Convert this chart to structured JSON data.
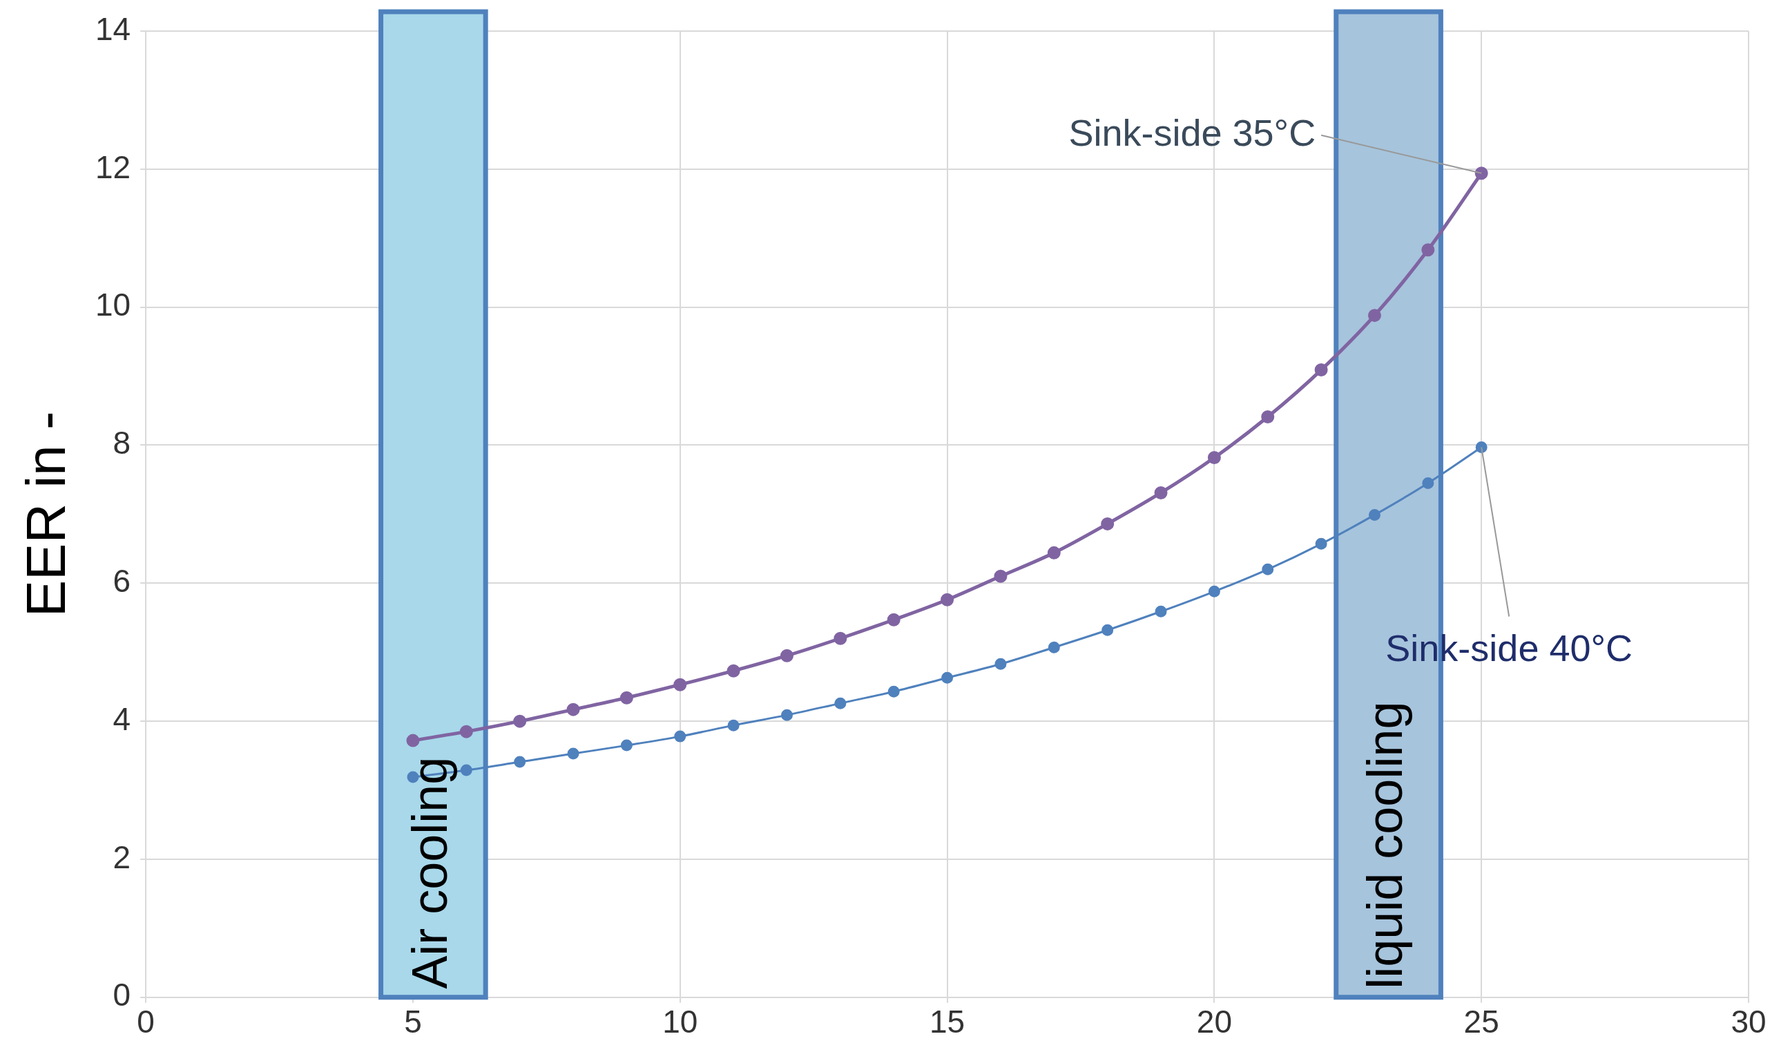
{
  "chart_data": {
    "type": "line",
    "ylabel": "EER in -",
    "x": [
      5,
      6,
      7,
      8,
      9,
      10,
      11,
      12,
      13,
      14,
      15,
      16,
      17,
      18,
      19,
      20,
      21,
      22,
      23,
      24,
      25
    ],
    "series": [
      {
        "color": "#8064a2",
        "values": [
          3.72,
          3.85,
          4.0,
          4.17,
          4.34,
          4.53,
          4.73,
          4.95,
          5.2,
          5.47,
          5.76,
          6.1,
          6.44,
          6.86,
          7.31,
          7.82,
          8.41,
          9.09,
          9.88,
          10.83,
          11.94
        ]
      },
      {
        "color": "#4f81bd",
        "values": [
          3.19,
          3.29,
          3.41,
          3.53,
          3.65,
          3.78,
          3.94,
          4.09,
          4.26,
          4.43,
          4.63,
          4.83,
          5.07,
          5.32,
          5.59,
          5.88,
          6.2,
          6.57,
          6.99,
          7.45,
          7.97
        ]
      }
    ],
    "xlim": [
      0,
      30
    ],
    "xticks": [
      0,
      5,
      10,
      15,
      20,
      25,
      30
    ],
    "ylim": [
      0,
      14
    ],
    "yticks": [
      0,
      2,
      4,
      6,
      8,
      10,
      12,
      14
    ],
    "grid": true,
    "legend": false,
    "marker": "circle",
    "line_style": "solid",
    "bands": [
      {
        "axis": "x",
        "from": 4.4,
        "to": 6.36,
        "label": "Air cooling",
        "color": "#a8d8ea"
      },
      {
        "axis": "x",
        "from": 22.28,
        "to": 24.24,
        "label": "liquid cooling",
        "color": "#a6c4dc"
      }
    ],
    "annotations": [
      {
        "text": "Sink-side 35°C",
        "x": 25,
        "y": 11.94
      },
      {
        "text": "Sink-side 40°C",
        "x": 25,
        "y": 7.97
      }
    ]
  }
}
